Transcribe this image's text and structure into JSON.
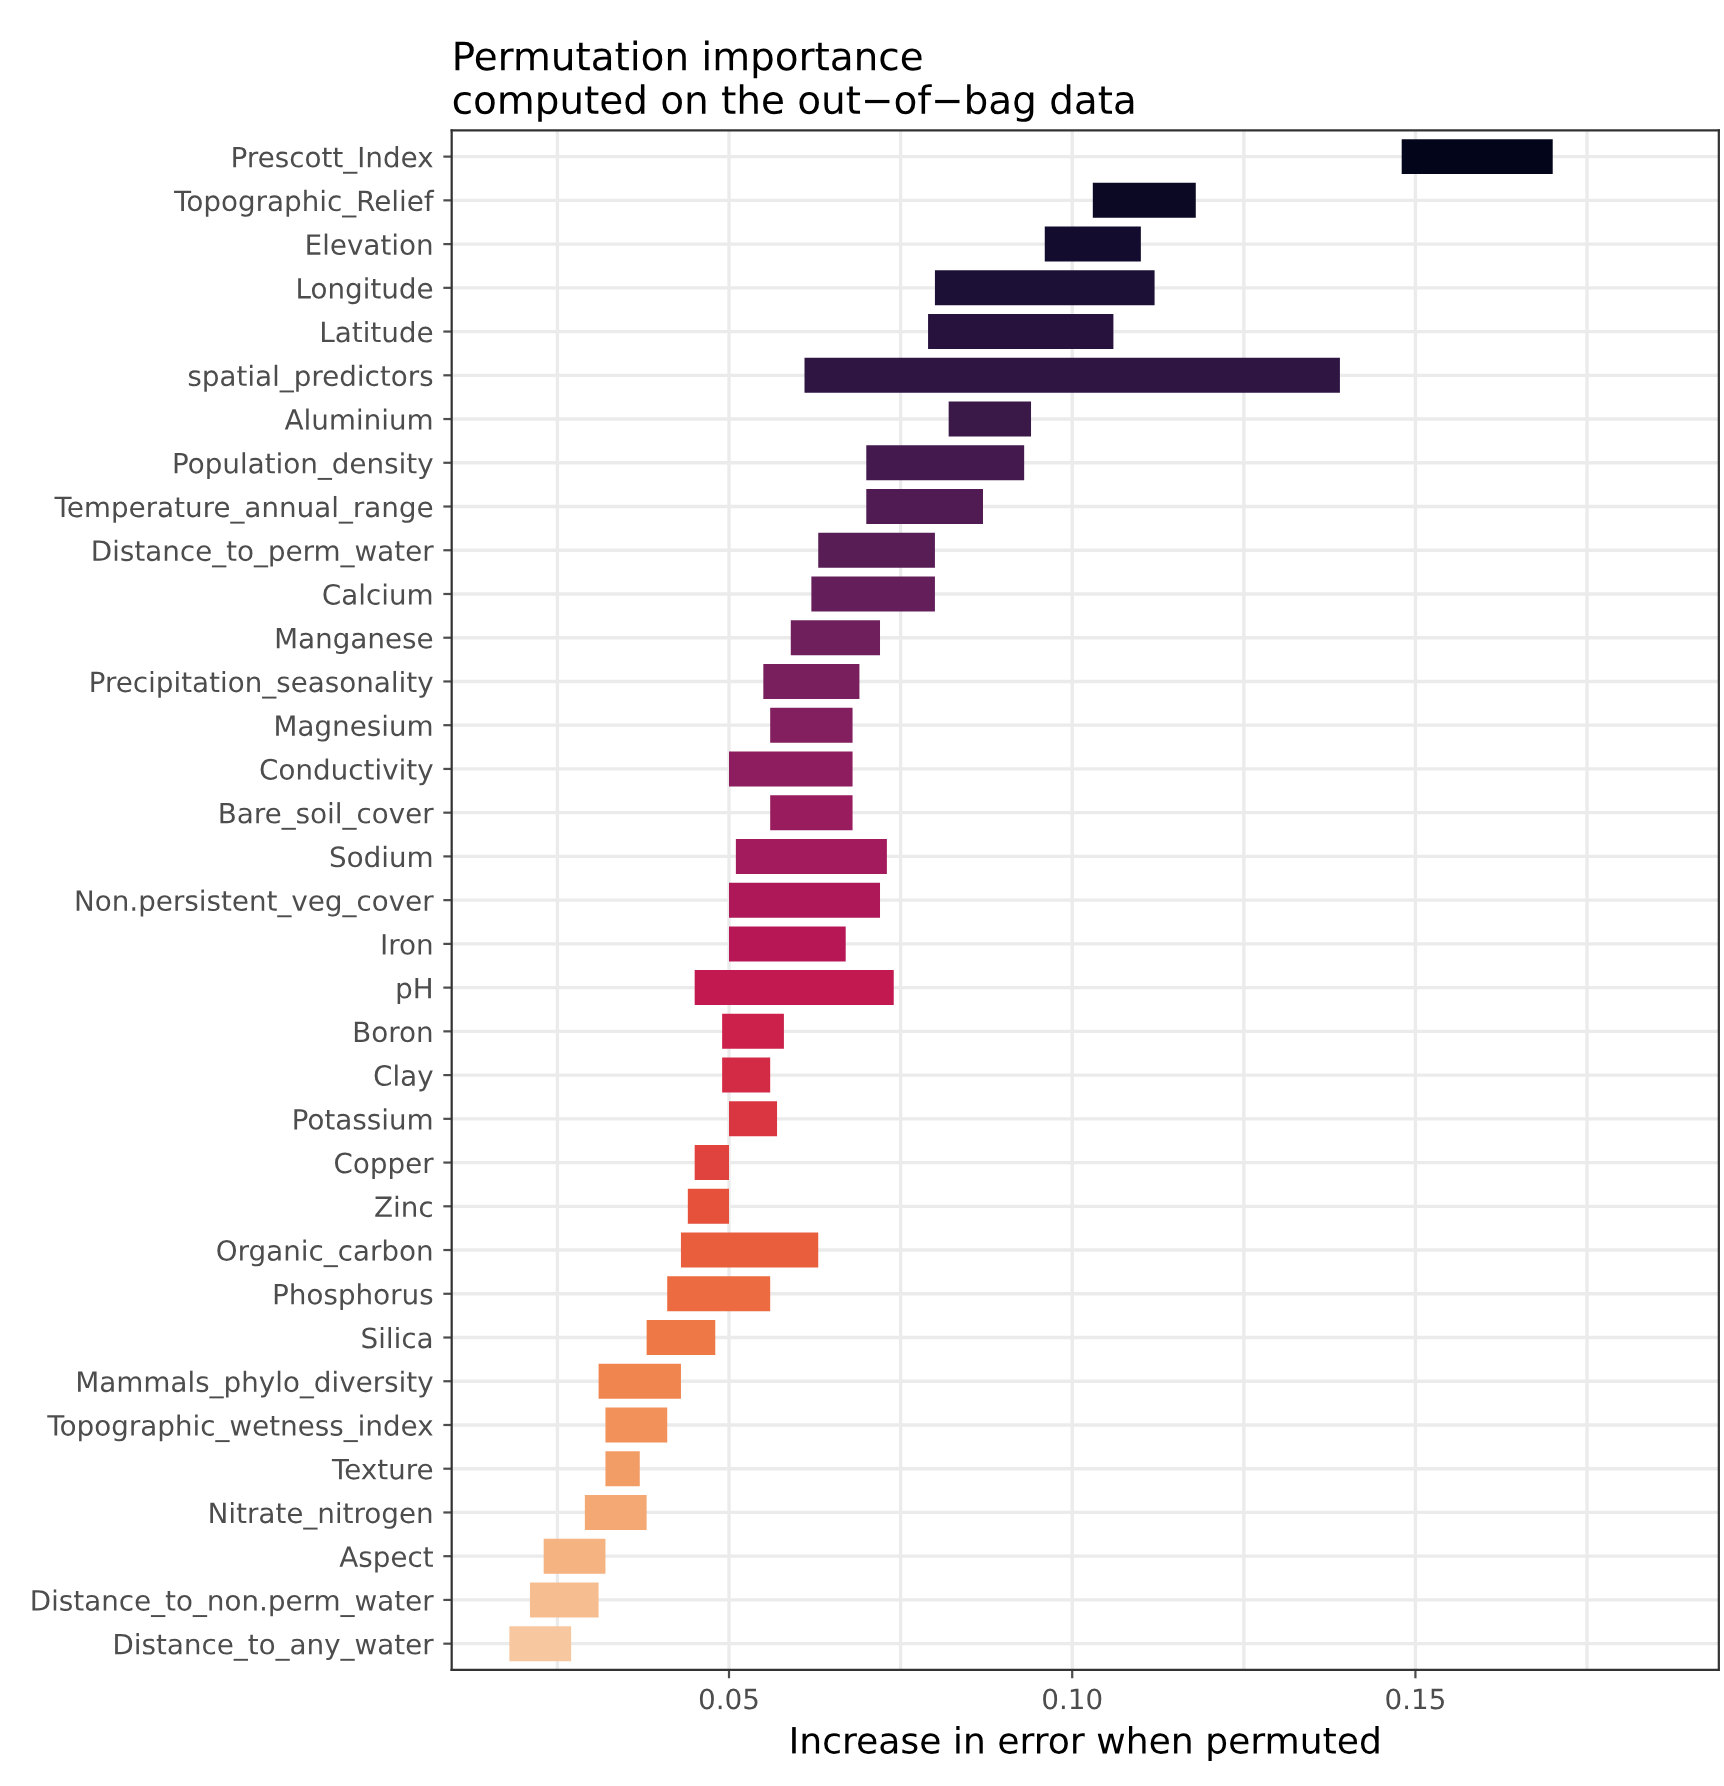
{
  "chart_data": {
    "type": "bar",
    "orientation": "horizontal",
    "title": "Permutation importance\ncomputed on the out−of−bag data",
    "xlabel": "Increase in error when permuted",
    "categories": [
      "Prescott_Index",
      "Topographic_Relief",
      "Elevation",
      "Longitude",
      "Latitude",
      "spatial_predictors",
      "Aluminium",
      "Population_density",
      "Temperature_annual_range",
      "Distance_to_perm_water",
      "Calcium",
      "Manganese",
      "Precipitation_seasonality",
      "Magnesium",
      "Conductivity",
      "Bare_soil_cover",
      "Sodium",
      "Non.persistent_veg_cover",
      "Iron",
      "pH",
      "Boron",
      "Clay",
      "Potassium",
      "Copper",
      "Zinc",
      "Organic_carbon",
      "Phosphorus",
      "Silica",
      "Mammals_phylo_diversity",
      "Topographic_wetness_index",
      "Texture",
      "Nitrate_nitrogen",
      "Aspect",
      "Distance_to_non.perm_water",
      "Distance_to_any_water"
    ],
    "base": [
      0.148,
      0.103,
      0.096,
      0.08,
      0.079,
      0.061,
      0.082,
      0.07,
      0.07,
      0.063,
      0.062,
      0.059,
      0.055,
      0.056,
      0.05,
      0.056,
      0.051,
      0.05,
      0.05,
      0.045,
      0.049,
      0.049,
      0.05,
      0.045,
      0.044,
      0.043,
      0.041,
      0.038,
      0.031,
      0.032,
      0.032,
      0.029,
      0.023,
      0.021,
      0.018
    ],
    "values": [
      0.022,
      0.015,
      0.014,
      0.032,
      0.027,
      0.078,
      0.012,
      0.023,
      0.017,
      0.017,
      0.018,
      0.013,
      0.014,
      0.012,
      0.018,
      0.012,
      0.022,
      0.022,
      0.017,
      0.029,
      0.009,
      0.007,
      0.007,
      0.005,
      0.006,
      0.02,
      0.015,
      0.01,
      0.012,
      0.009,
      0.005,
      0.009,
      0.009,
      0.01,
      0.009
    ],
    "colors": [
      "#03051a",
      "#0b0924",
      "#140c2e",
      "#1d1036",
      "#26123d",
      "#2e1542",
      "#3a1848",
      "#44194d",
      "#4f1b52",
      "#591d56",
      "#641e5a",
      "#6e1f5c",
      "#791f5e",
      "#831e5f",
      "#8e1d5f",
      "#991c5e",
      "#a31b5c",
      "#ae1859",
      "#b81755",
      "#c21a50",
      "#cb214b",
      "#d32b46",
      "#da3642",
      "#e0433e",
      "#e5513b",
      "#e95e3c",
      "#ec6b40",
      "#ee7846",
      "#f0854f",
      "#f2915a",
      "#f39d66",
      "#f4a873",
      "#f5b381",
      "#f6be90",
      "#f7c8a0"
    ],
    "xlim": [
      0.0096,
      0.1942
    ],
    "xticks": [
      {
        "value": 0.025,
        "label": null
      },
      {
        "value": 0.05,
        "label": "0.05"
      },
      {
        "value": 0.075,
        "label": null
      },
      {
        "value": 0.1,
        "label": "0.10"
      },
      {
        "value": 0.125,
        "label": null
      },
      {
        "value": 0.15,
        "label": "0.15"
      },
      {
        "value": 0.175,
        "label": null
      }
    ],
    "grid": true
  }
}
